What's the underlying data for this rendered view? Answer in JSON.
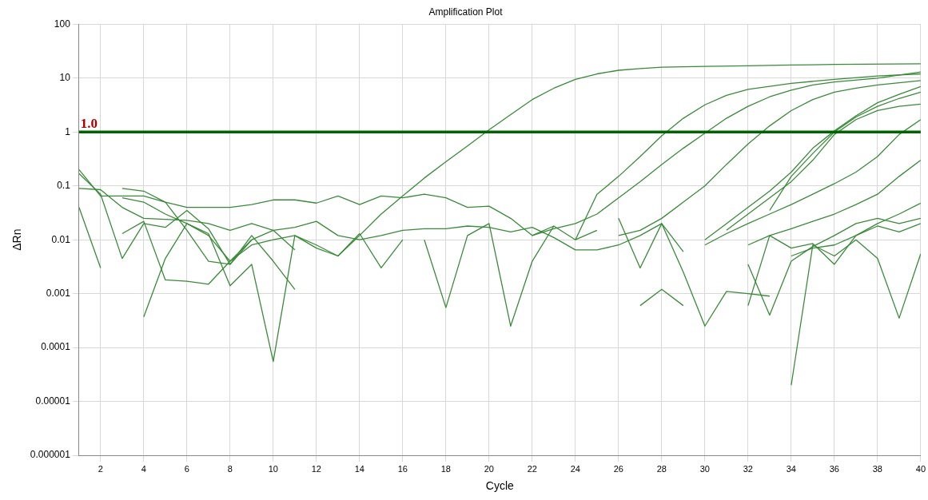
{
  "chart_data": {
    "type": "line",
    "title": "Amplification Plot",
    "xlabel": "Cycle",
    "ylabel": "ΔRn",
    "xlim": [
      1,
      40
    ],
    "xticks": [
      2,
      4,
      6,
      8,
      10,
      12,
      14,
      16,
      18,
      20,
      22,
      24,
      26,
      28,
      30,
      32,
      34,
      36,
      38,
      40
    ],
    "ylim": [
      1e-06,
      100
    ],
    "yticks": [
      {
        "value": 1e-06,
        "label": "0.000001"
      },
      {
        "value": 1e-05,
        "label": "0.00001"
      },
      0.0001,
      0.001,
      0.01,
      0.1,
      1,
      10,
      100
    ],
    "log": "y",
    "grid": true,
    "legend": false,
    "marker": "none",
    "line_style": "solid",
    "ref_lines": [
      {
        "axis": "y",
        "value": 1,
        "label": "1.0",
        "color": "#006400"
      }
    ],
    "series": [
      {
        "color": "#3a8a3a",
        "x": [
          3,
          4,
          5,
          6,
          7,
          8,
          9,
          10,
          11,
          12,
          13,
          14,
          15,
          16,
          17,
          18,
          19,
          20,
          21,
          22,
          23,
          24,
          25,
          26,
          27,
          28,
          30,
          32,
          34,
          36,
          40
        ],
        "values": [
          0.06,
          0.05,
          0.03,
          0.02,
          0.012,
          0.004,
          0.008,
          0.01,
          0.012,
          0.007,
          0.005,
          0.012,
          0.03,
          0.065,
          0.14,
          0.28,
          0.55,
          1.1,
          2.1,
          4,
          6.5,
          9.5,
          12,
          14,
          15,
          16,
          16.5,
          17,
          17.5,
          18,
          18.5
        ]
      },
      {
        "color": "#3a8a3a",
        "x": [
          24,
          25,
          26,
          27,
          28,
          29,
          30,
          31,
          32,
          34,
          36,
          38,
          40
        ],
        "values": [
          0.01,
          0.07,
          0.15,
          0.35,
          0.85,
          1.8,
          3.2,
          4.8,
          6.2,
          8,
          9.5,
          11,
          12
        ]
      },
      {
        "color": "#3a8a3a",
        "x": [
          22,
          23,
          24,
          25,
          26,
          27,
          28,
          29,
          30,
          31,
          32,
          33,
          34,
          35,
          36,
          38,
          40
        ],
        "values": [
          0.012,
          0.016,
          0.02,
          0.03,
          0.06,
          0.12,
          0.25,
          0.5,
          0.95,
          1.8,
          3,
          4.5,
          6,
          7.5,
          8.5,
          10,
          13
        ]
      },
      {
        "color": "#3a8a3a",
        "x": [
          26,
          27,
          28,
          29,
          30,
          31,
          32,
          33,
          34,
          35,
          36,
          37,
          38,
          40
        ],
        "values": [
          0.012,
          0.015,
          0.025,
          0.05,
          0.1,
          0.25,
          0.6,
          1.3,
          2.5,
          4,
          5.5,
          6.5,
          7.5,
          9
        ]
      },
      {
        "color": "#3a8a3a",
        "x": [
          30,
          31,
          32,
          33,
          34,
          35,
          36,
          37,
          38,
          39,
          40
        ],
        "values": [
          0.01,
          0.02,
          0.04,
          0.08,
          0.18,
          0.5,
          1.05,
          2,
          3.5,
          5,
          7
        ]
      },
      {
        "color": "#3a8a3a",
        "x": [
          33,
          34,
          35,
          36,
          37,
          38,
          39,
          40
        ],
        "values": [
          0.035,
          0.15,
          0.4,
          1,
          1.9,
          3,
          4.2,
          5.5
        ]
      },
      {
        "color": "#3a8a3a",
        "x": [
          31,
          32,
          33,
          34,
          35,
          36,
          37,
          38,
          39,
          40
        ],
        "values": [
          0.015,
          0.03,
          0.06,
          0.12,
          0.3,
          0.9,
          1.7,
          2.5,
          3,
          3.3
        ]
      },
      {
        "color": "#3a8a3a",
        "x": [
          30,
          31,
          32,
          33,
          34,
          35,
          36,
          37,
          38,
          39,
          40
        ],
        "values": [
          0.008,
          0.013,
          0.02,
          0.03,
          0.045,
          0.07,
          0.11,
          0.18,
          0.35,
          0.9,
          1.7
        ]
      },
      {
        "color": "#3a8a3a",
        "x": [
          32,
          33,
          34,
          35,
          36,
          37,
          38,
          39,
          40
        ],
        "values": [
          0.008,
          0.012,
          0.016,
          0.022,
          0.03,
          0.045,
          0.07,
          0.15,
          0.3
        ]
      },
      {
        "color": "#3a8a3a",
        "x": [
          34,
          35,
          36,
          37,
          38,
          39,
          40
        ],
        "values": [
          0.005,
          0.007,
          0.008,
          0.012,
          0.02,
          0.03,
          0.048
        ]
      },
      {
        "color": "#3a8a3a",
        "x": [
          34,
          35,
          36,
          37,
          38,
          39,
          40
        ],
        "values": [
          2e-05,
          0.008,
          0.005,
          0.01,
          0.0045,
          0.00035,
          0.0055
        ]
      },
      {
        "color": "#3a8a3a",
        "x": [
          1,
          2,
          3,
          4,
          5,
          6,
          7,
          8,
          9,
          10,
          11,
          12,
          13,
          14,
          15,
          16,
          17,
          18,
          19,
          20,
          21,
          22,
          23
        ],
        "values": [
          0.2,
          0.065,
          0.065,
          0.065,
          0.05,
          0.04,
          0.04,
          0.04,
          0.045,
          0.055,
          0.055,
          0.048,
          0.065,
          0.045,
          0.065,
          0.06,
          0.07,
          0.06,
          0.04,
          0.042,
          0.025,
          0.012,
          0.018
        ]
      },
      {
        "color": "#3a8a3a",
        "x": [
          1,
          2,
          3,
          4,
          5,
          6,
          7,
          8,
          9,
          10,
          11,
          12,
          13,
          14,
          15,
          16,
          17,
          18,
          19,
          20,
          21,
          22,
          23,
          24,
          25,
          26,
          27,
          28,
          29
        ],
        "values": [
          0.09,
          0.085,
          0.04,
          0.025,
          0.024,
          0.023,
          0.02,
          0.015,
          0.02,
          0.015,
          0.017,
          0.022,
          0.012,
          0.01,
          0.012,
          0.015,
          0.016,
          0.016,
          0.018,
          0.017,
          0.014,
          0.017,
          0.011,
          0.0065,
          0.0065,
          0.008,
          0.012,
          0.02,
          0.006
        ]
      },
      {
        "color": "#3a8a3a",
        "x": [
          1,
          2,
          3,
          4,
          5,
          6,
          7,
          8,
          9,
          10,
          11
        ],
        "values": [
          0.17,
          0.07,
          0.0045,
          0.02,
          0.017,
          0.035,
          0.016,
          0.0035,
          0.01,
          0.015,
          0.0065
        ]
      },
      {
        "color": "#3a8a3a",
        "x": [
          1,
          2,
          3,
          4,
          5,
          6,
          7,
          8,
          9,
          10,
          11,
          12,
          13,
          14,
          15,
          16
        ],
        "values": [
          0.04,
          0.003,
          null,
          0.00037,
          0.0045,
          0.02,
          0.013,
          0.0014,
          0.0035,
          5.5e-05,
          0.012,
          0.008,
          0.005,
          0.013,
          0.003,
          0.01
        ]
      },
      {
        "color": "#3a8a3a",
        "x": [
          3,
          4,
          5,
          6,
          7,
          8,
          9,
          10,
          11
        ],
        "values": [
          0.09,
          0.08,
          0.05,
          0.015,
          0.004,
          0.0035,
          0.012,
          0.004,
          0.0012
        ]
      },
      {
        "color": "#3a8a3a",
        "x": [
          3,
          4,
          5,
          6,
          7,
          8,
          9
        ],
        "values": [
          0.013,
          0.022,
          0.0018,
          0.0017,
          0.0015,
          0.004,
          0.01
        ]
      },
      {
        "color": "#3a8a3a",
        "x": [
          17,
          18,
          19,
          20,
          21,
          22,
          23,
          24,
          25
        ],
        "values": [
          0.01,
          0.00055,
          0.012,
          0.02,
          0.00025,
          0.004,
          0.018,
          0.01,
          0.015
        ]
      },
      {
        "color": "#3a8a3a",
        "x": [
          27,
          28,
          29
        ],
        "values": [
          0.0006,
          0.0012,
          0.0006
        ]
      },
      {
        "color": "#3a8a3a",
        "x": [
          26,
          27,
          28,
          29,
          30,
          31,
          32,
          33
        ],
        "values": [
          0.025,
          0.003,
          0.02,
          0.0025,
          0.00025,
          0.0011,
          0.001,
          0.0009
        ]
      },
      {
        "color": "#3a8a3a",
        "x": [
          32,
          33,
          34,
          35,
          36,
          37,
          38,
          39,
          40
        ],
        "values": [
          0.0006,
          0.012,
          0.007,
          0.0085,
          0.0035,
          0.012,
          0.018,
          0.014,
          0.02
        ]
      },
      {
        "color": "#3a8a3a",
        "x": [
          32,
          33,
          34,
          35,
          36,
          37,
          38,
          39,
          40
        ],
        "values": [
          0.0035,
          0.0004,
          0.004,
          0.0075,
          0.012,
          0.02,
          0.025,
          0.02,
          0.025
        ]
      }
    ]
  }
}
